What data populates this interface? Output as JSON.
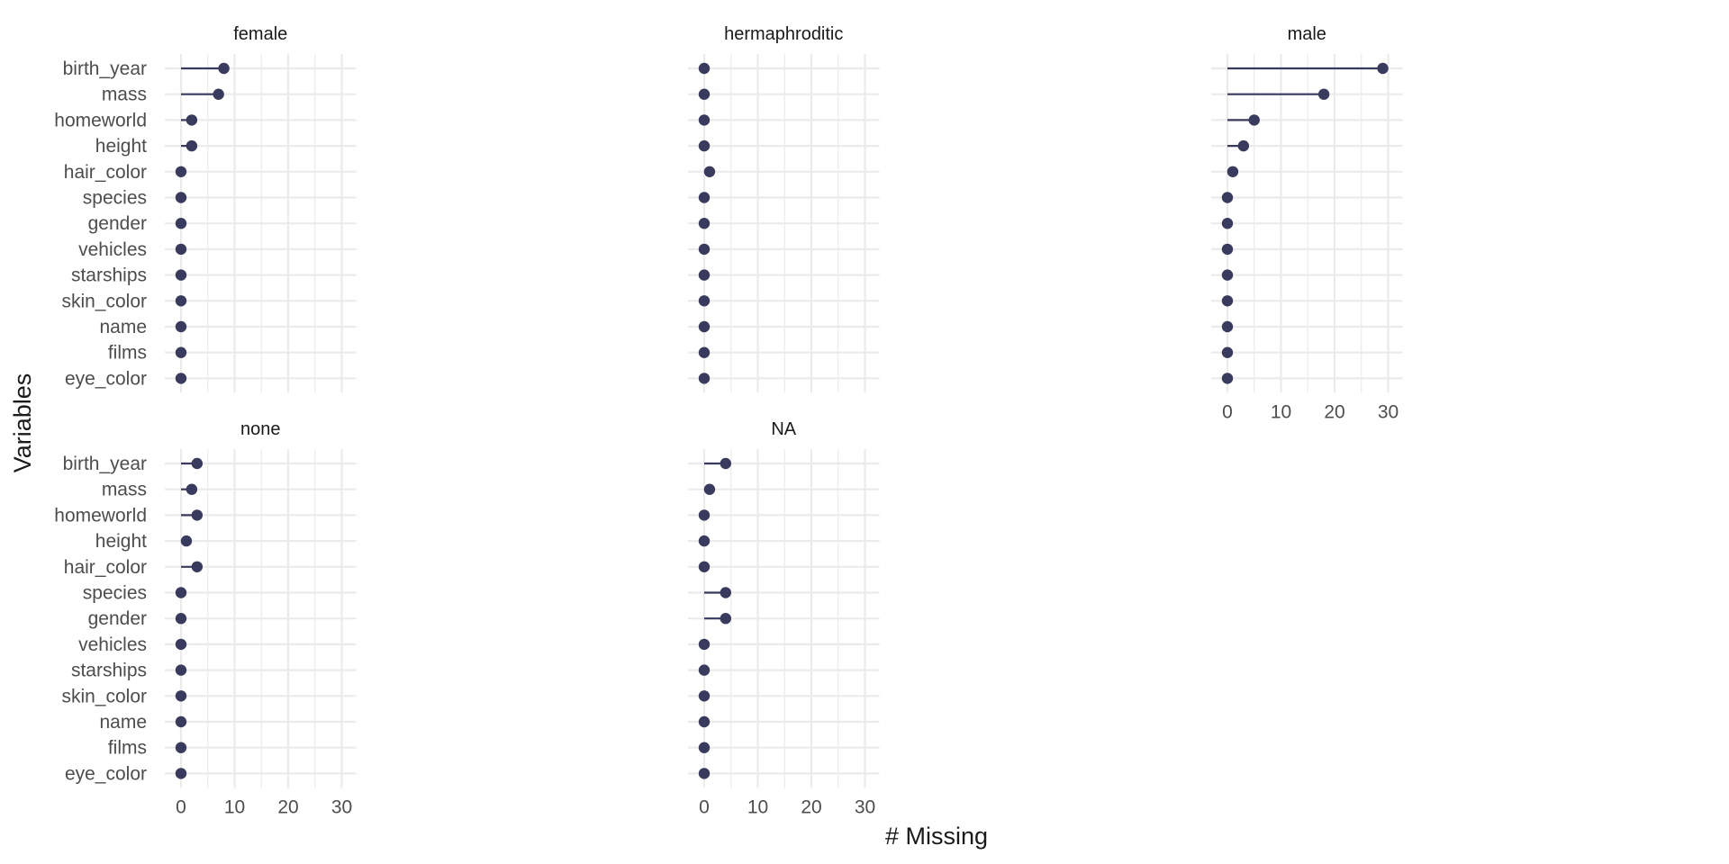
{
  "chart_data": {
    "type": "lollipop",
    "xlabel": "# Missing",
    "ylabel": "Variables",
    "xlim": [
      0,
      30
    ],
    "x_ticks": [
      0,
      10,
      20,
      30
    ],
    "grid": true,
    "colors": {
      "mark": "#383a5e",
      "grid": "#ebebeb",
      "background": "#ffffff"
    },
    "variables": [
      "birth_year",
      "mass",
      "homeworld",
      "height",
      "hair_color",
      "species",
      "gender",
      "vehicles",
      "starships",
      "skin_color",
      "name",
      "films",
      "eye_color"
    ],
    "panels": [
      {
        "title": "female",
        "values": [
          8,
          7,
          2,
          2,
          0,
          0,
          0,
          0,
          0,
          0,
          0,
          0,
          0
        ]
      },
      {
        "title": "hermaphroditic",
        "values": [
          0,
          0,
          0,
          0,
          1,
          0,
          0,
          0,
          0,
          0,
          0,
          0,
          0
        ]
      },
      {
        "title": "male",
        "values": [
          29,
          18,
          5,
          3,
          1,
          0,
          0,
          0,
          0,
          0,
          0,
          0,
          0
        ]
      },
      {
        "title": "none",
        "values": [
          3,
          2,
          3,
          1,
          3,
          0,
          0,
          0,
          0,
          0,
          0,
          0,
          0
        ]
      },
      {
        "title": "NA",
        "values": [
          4,
          1,
          0,
          0,
          0,
          4,
          4,
          0,
          0,
          0,
          0,
          0,
          0
        ]
      }
    ]
  }
}
